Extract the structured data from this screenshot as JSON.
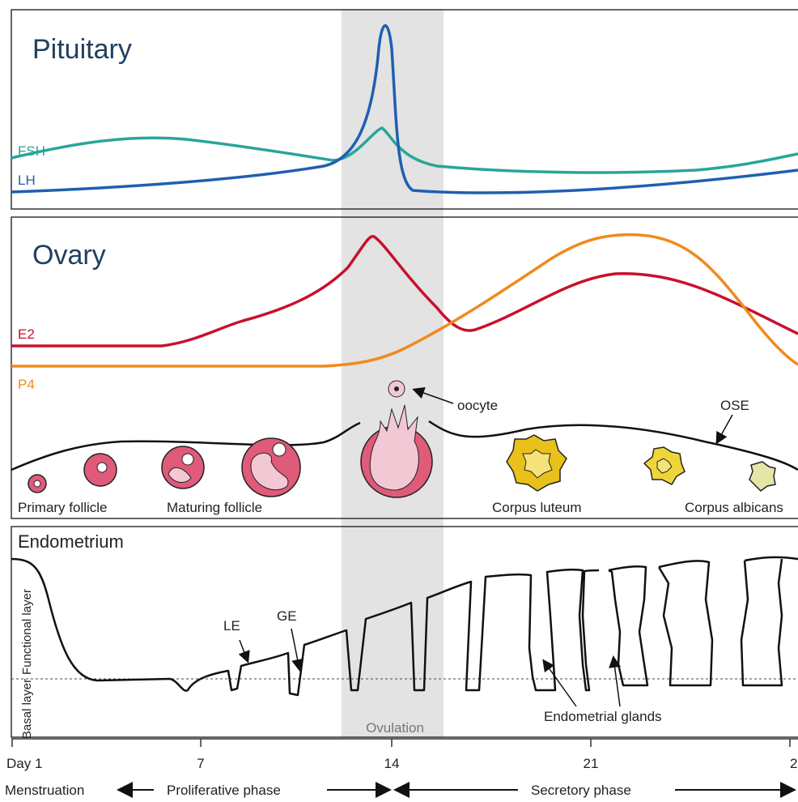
{
  "pituitary": {
    "title": "Pituitary",
    "labels": [
      "FSH",
      "LH"
    ]
  },
  "ovary": {
    "title": "Ovary",
    "labels": [
      "E2",
      "P4"
    ],
    "annotations": [
      "oocyte",
      "OSE"
    ],
    "structures": [
      "Primary follicle",
      "Maturing follicle",
      "Corpus luteum",
      "Corpus albicans"
    ]
  },
  "endometrium": {
    "title": "Endometrium",
    "layers": [
      "Functional layer",
      "Basal layer"
    ],
    "annotations": [
      "LE",
      "GE",
      "Endometrial glands"
    ]
  },
  "ovulation": "Ovulation",
  "axis": {
    "ticks": [
      "Day 1",
      "7",
      "14",
      "21",
      "2"
    ]
  },
  "phases": [
    "Menstruation",
    "Proliferative phase",
    "Secretory phase"
  ]
}
